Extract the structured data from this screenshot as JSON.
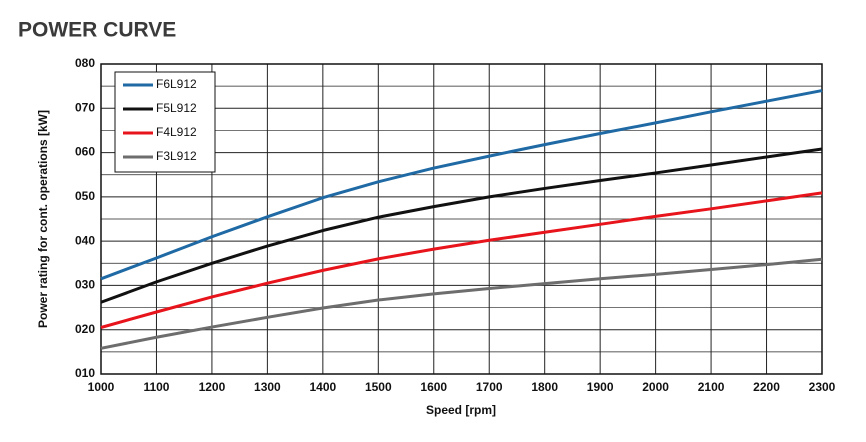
{
  "chart_data": {
    "type": "line",
    "title": "POWER CURVE",
    "x_label": "Speed [rpm]",
    "y_label": "Power rating for cont. operations [kW]",
    "x": [
      1000,
      1100,
      1200,
      1300,
      1400,
      1500,
      1600,
      1700,
      1800,
      1900,
      2000,
      2100,
      2200,
      2300
    ],
    "series": [
      {
        "name": "F6L912",
        "color": "#1f6aa5",
        "values": [
          31.5,
          36.2,
          41,
          45.5,
          49.8,
          53.4,
          56.5,
          59.2,
          61.8,
          64.3,
          66.7,
          69.2,
          71.6,
          74
        ]
      },
      {
        "name": "F5L912",
        "color": "#111111",
        "values": [
          26.2,
          30.8,
          35,
          38.9,
          42.4,
          45.4,
          47.8,
          50,
          51.9,
          53.7,
          55.4,
          57.2,
          59,
          60.8
        ]
      },
      {
        "name": "F4L912",
        "color": "#e8141b",
        "values": [
          20.5,
          24,
          27.4,
          30.5,
          33.4,
          36,
          38.2,
          40.2,
          42,
          43.8,
          45.6,
          47.3,
          49.1,
          50.9
        ]
      },
      {
        "name": "F3L912",
        "color": "#6d6d6d",
        "values": [
          15.8,
          18.3,
          20.6,
          22.8,
          24.9,
          26.7,
          28.1,
          29.3,
          30.4,
          31.5,
          32.5,
          33.6,
          34.7,
          35.9
        ]
      }
    ],
    "xlim": [
      1000,
      2300
    ],
    "xticks": [
      1000,
      1100,
      1200,
      1300,
      1400,
      1500,
      1600,
      1700,
      1800,
      1900,
      2000,
      2100,
      2200,
      2300
    ],
    "ylim": [
      10,
      80
    ],
    "yticks": [
      {
        "value": 10,
        "label": "010"
      },
      {
        "value": 20,
        "label": "020"
      },
      {
        "value": 30,
        "label": "030"
      },
      {
        "value": 40,
        "label": "040"
      },
      {
        "value": 50,
        "label": "050"
      },
      {
        "value": 60,
        "label": "060"
      },
      {
        "value": 70,
        "label": "070"
      },
      {
        "value": 80,
        "label": "080"
      }
    ],
    "y_minor_ticks": [
      15,
      25,
      35,
      45,
      55,
      65,
      75
    ],
    "grid": true,
    "legend": "upper-left"
  }
}
